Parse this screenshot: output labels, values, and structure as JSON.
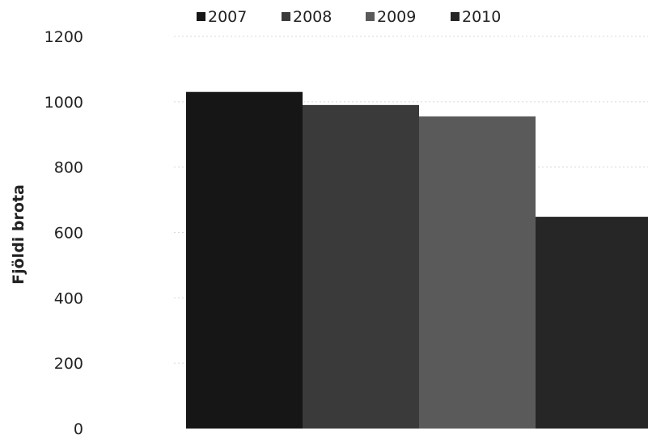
{
  "chart_data": {
    "type": "bar",
    "ylabel": "Fjöldi brota",
    "xlabel": "",
    "ylim": [
      0,
      1200
    ],
    "yticks": [
      0,
      200,
      400,
      600,
      800,
      1000,
      1200
    ],
    "grid": true,
    "legend_position": "top",
    "categories": [
      ""
    ],
    "series": [
      {
        "name": "2007",
        "values": [
          1030
        ],
        "color": "#161616"
      },
      {
        "name": "2008",
        "values": [
          990
        ],
        "color": "#3a3a3a"
      },
      {
        "name": "2009",
        "values": [
          955
        ],
        "color": "#5a5a5a"
      },
      {
        "name": "2010",
        "values": [
          648
        ],
        "color": "#262626"
      }
    ]
  }
}
